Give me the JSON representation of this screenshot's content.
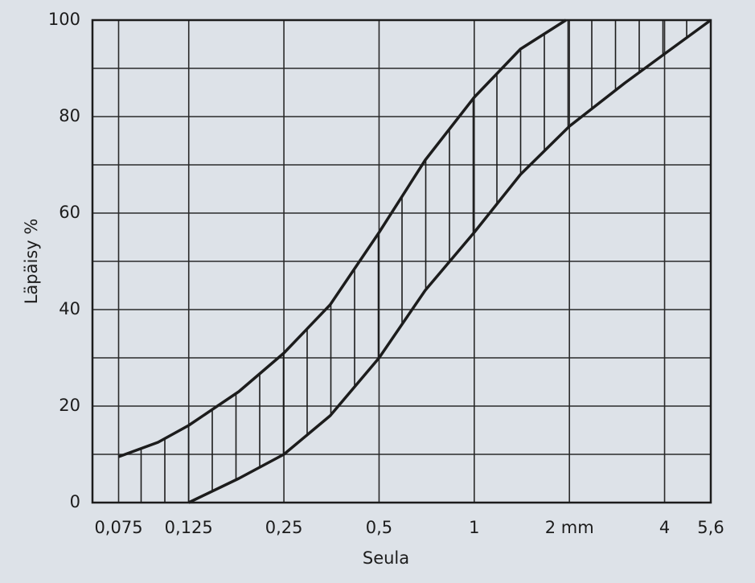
{
  "chart_data": {
    "type": "line",
    "xlabel": "Seula",
    "ylabel": "Läpäisy %",
    "xscale": "log",
    "xlim": [
      0.062,
      5.6
    ],
    "ylim": [
      0,
      100
    ],
    "xticks": [
      {
        "value": 0.075,
        "label": "0,075"
      },
      {
        "value": 0.125,
        "label": "0,125"
      },
      {
        "value": 0.25,
        "label": "0,25"
      },
      {
        "value": 0.5,
        "label": "0,5"
      },
      1,
      {
        "value": 2,
        "label": "2 mm"
      },
      4,
      {
        "value": 5.6,
        "label": "5,6"
      }
    ],
    "yticks": [
      0,
      20,
      40,
      60,
      80,
      100
    ],
    "ygrid": [
      0,
      10,
      20,
      30,
      40,
      50,
      60,
      70,
      80,
      90,
      100
    ],
    "grid": true,
    "hatch_between": true,
    "series": [
      {
        "color": "#1c1c1c",
        "x": [
          0.075,
          0.1,
          0.125,
          0.18,
          0.25,
          0.35,
          0.5,
          0.7,
          1,
          1.4,
          1.95
        ],
        "values": [
          9.5,
          12.5,
          16,
          23,
          31,
          41,
          56,
          71,
          84,
          94,
          100
        ]
      },
      {
        "color": "#1c1c1c",
        "x": [
          0.125,
          0.18,
          0.25,
          0.35,
          0.5,
          0.7,
          1,
          1.4,
          2,
          3,
          4,
          5.6
        ],
        "values": [
          0,
          5,
          10,
          18,
          30,
          44,
          56,
          68,
          78,
          87,
          93,
          100
        ]
      }
    ]
  }
}
